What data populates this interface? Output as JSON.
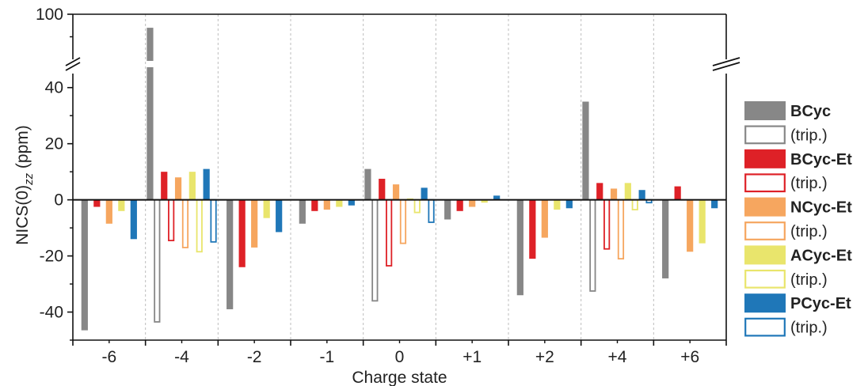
{
  "chart_data": {
    "type": "bar",
    "xlabel": "Charge state",
    "ylabel_main": "NICS(0)",
    "ylabel_sub": "zz",
    "ylabel_unit": " (ppm)",
    "categories": [
      "-6",
      "-4",
      "-2",
      "-1",
      "0",
      "+1",
      "+2",
      "+4",
      "+6"
    ],
    "y_axis": {
      "lower_range": [
        -50,
        45
      ],
      "upper_range": [
        90,
        100
      ],
      "ticks_lower": [
        -40,
        -20,
        0,
        20,
        40
      ],
      "tick_labels_lower": [
        "-40",
        "-20",
        "0",
        "20",
        "40"
      ],
      "ticks_upper": [
        100
      ],
      "tick_labels_upper": [
        "100"
      ],
      "broken_axis": true
    },
    "grid": "vertical dashed separators between categories",
    "legend_position": "right",
    "series": [
      {
        "name": "BCyc",
        "color": "#878787",
        "filled": true,
        "values": [
          -46.5,
          97,
          -39,
          -8.5,
          11,
          -7,
          -34,
          35,
          -28
        ]
      },
      {
        "name": "(trip.)",
        "color": "#878787",
        "filled": false,
        "values": [
          null,
          -43.5,
          null,
          null,
          -36,
          null,
          null,
          -32.5,
          null
        ]
      },
      {
        "name": "BCyc-Et",
        "color": "#de2127",
        "filled": true,
        "values": [
          -2.5,
          10,
          -24,
          -4,
          7.5,
          -4,
          -21,
          6,
          4.8
        ]
      },
      {
        "name": "(trip.)",
        "color": "#de2127",
        "filled": false,
        "values": [
          null,
          -14.5,
          null,
          null,
          -23.5,
          null,
          null,
          -17.5,
          null
        ]
      },
      {
        "name": "NCyc-Et",
        "color": "#f6a65f",
        "filled": true,
        "values": [
          -8.5,
          8,
          -17,
          -3.5,
          5.5,
          -2.5,
          -13.5,
          4,
          -18.5
        ]
      },
      {
        "name": "(trip.)",
        "color": "#f6a65f",
        "filled": false,
        "values": [
          null,
          -17,
          null,
          null,
          -15.5,
          null,
          null,
          -21,
          null
        ]
      },
      {
        "name": "ACyc-Et",
        "color": "#e9e56c",
        "filled": true,
        "values": [
          -4,
          10,
          -6.5,
          -2.5,
          0.5,
          -1,
          -3.5,
          6,
          -15.5
        ]
      },
      {
        "name": "(trip.)",
        "color": "#e9e56c",
        "filled": false,
        "values": [
          null,
          -18.5,
          null,
          null,
          -4.5,
          null,
          null,
          -3.5,
          null
        ]
      },
      {
        "name": "PCyc-Et",
        "color": "#1f77b8",
        "filled": true,
        "values": [
          -14,
          11,
          -11.5,
          -2,
          4.3,
          1.5,
          -3,
          3.5,
          -3
        ]
      },
      {
        "name": "(trip.)",
        "color": "#1f77b8",
        "filled": false,
        "values": [
          null,
          -15,
          null,
          null,
          -8,
          null,
          null,
          -1,
          null
        ]
      }
    ]
  }
}
